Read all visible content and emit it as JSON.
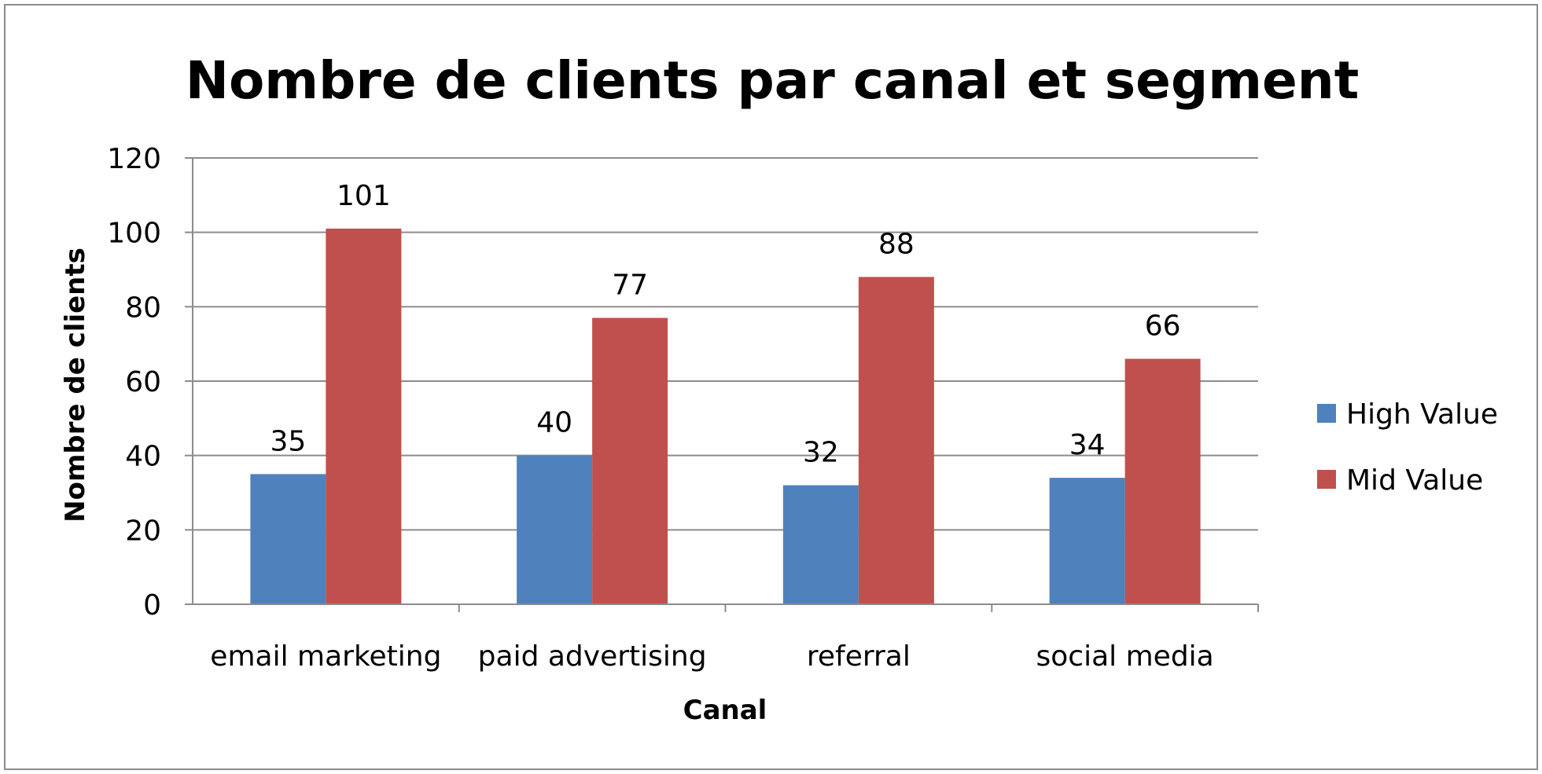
{
  "chart_data": {
    "type": "bar",
    "title": "Nombre de clients par canal et segment",
    "xlabel": "Canal",
    "ylabel": "Nombre de clients",
    "categories": [
      "email marketing",
      "paid advertising",
      "referral",
      "social media"
    ],
    "series": [
      {
        "name": "High Value",
        "values": [
          35,
          40,
          32,
          34
        ],
        "color": "#4F81BD"
      },
      {
        "name": "Mid Value",
        "values": [
          101,
          77,
          88,
          66
        ],
        "color": "#C0504D"
      }
    ],
    "ylim": [
      0,
      120
    ],
    "yticks": [
      0,
      20,
      40,
      60,
      80,
      100,
      120
    ],
    "grid": true,
    "legend": "right",
    "data_labels": true
  }
}
